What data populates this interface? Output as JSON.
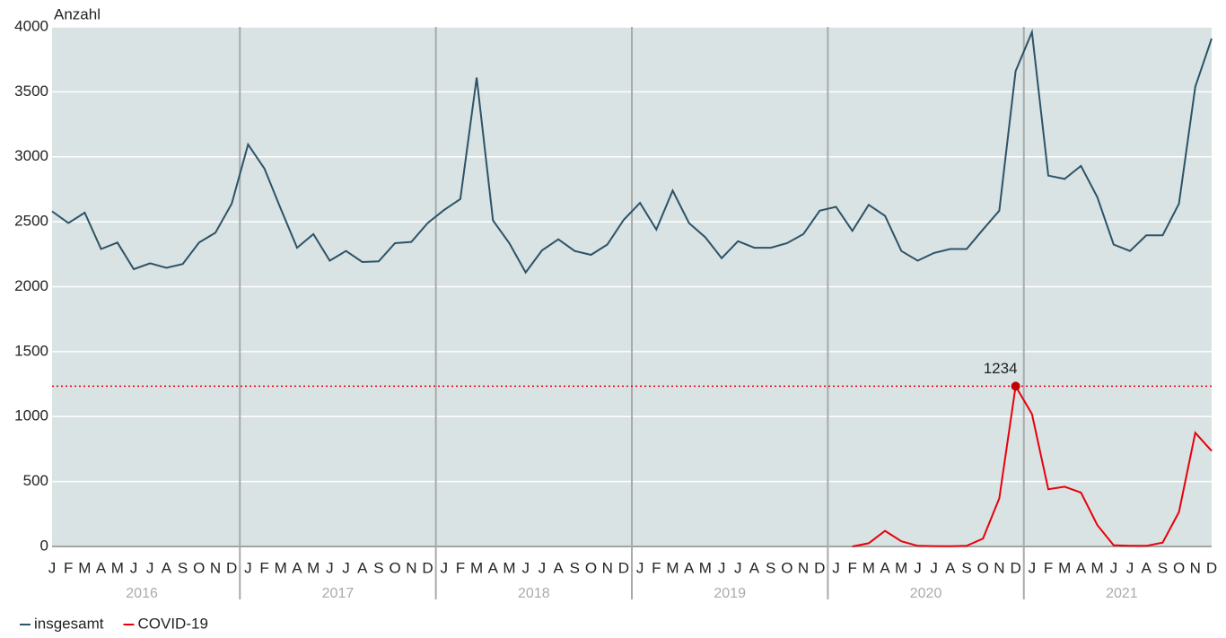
{
  "chart_data": {
    "type": "line",
    "y_axis_label": "Anzahl",
    "categories": [
      "J",
      "F",
      "M",
      "A",
      "M",
      "J",
      "J",
      "A",
      "S",
      "O",
      "N",
      "D",
      "J",
      "F",
      "M",
      "A",
      "M",
      "J",
      "J",
      "A",
      "S",
      "O",
      "N",
      "D",
      "J",
      "F",
      "M",
      "A",
      "M",
      "J",
      "J",
      "A",
      "S",
      "O",
      "N",
      "D",
      "J",
      "F",
      "M",
      "A",
      "M",
      "J",
      "J",
      "A",
      "S",
      "O",
      "N",
      "D",
      "J",
      "F",
      "M",
      "A",
      "M",
      "J",
      "J",
      "A",
      "S",
      "O",
      "N",
      "D",
      "J",
      "F",
      "M",
      "A",
      "M",
      "J",
      "J",
      "A",
      "S",
      "O",
      "N",
      "D"
    ],
    "years": [
      "2016",
      "2017",
      "2018",
      "2019",
      "2020",
      "2021"
    ],
    "series": [
      {
        "name": "insgesamt",
        "color": "#2d5367",
        "values": [
          2580,
          2490,
          2570,
          2290,
          2340,
          2135,
          2180,
          2145,
          2175,
          2340,
          2415,
          2640,
          3095,
          2910,
          2600,
          2300,
          2405,
          2200,
          2275,
          2190,
          2195,
          2335,
          2345,
          2490,
          2590,
          2675,
          3610,
          2510,
          2335,
          2110,
          2280,
          2365,
          2275,
          2245,
          2325,
          2515,
          2645,
          2440,
          2740,
          2490,
          2380,
          2220,
          2350,
          2300,
          2300,
          2335,
          2405,
          2585,
          2615,
          2430,
          2630,
          2545,
          2275,
          2200,
          2260,
          2290,
          2290,
          2440,
          2585,
          3660,
          3960,
          2855,
          2830,
          2930,
          2690,
          2325,
          2275,
          2395,
          2395,
          2640,
          3540,
          3910
        ]
      },
      {
        "name": "COVID-19",
        "color": "#e8000b",
        "values": [
          null,
          null,
          null,
          null,
          null,
          null,
          null,
          null,
          null,
          null,
          null,
          null,
          null,
          null,
          null,
          null,
          null,
          null,
          null,
          null,
          null,
          null,
          null,
          null,
          null,
          null,
          null,
          null,
          null,
          null,
          null,
          null,
          null,
          null,
          null,
          null,
          null,
          null,
          null,
          null,
          null,
          null,
          null,
          null,
          null,
          null,
          null,
          null,
          null,
          0,
          25,
          120,
          40,
          5,
          3,
          2,
          5,
          60,
          370,
          1234,
          1020,
          440,
          460,
          415,
          165,
          10,
          5,
          5,
          30,
          265,
          875,
          735
        ]
      }
    ],
    "reference_line": 1234,
    "ylim": [
      0,
      4000
    ],
    "yticks": [
      0,
      500,
      1000,
      1500,
      2000,
      2500,
      3000,
      3500,
      4000
    ],
    "grid": true
  }
}
